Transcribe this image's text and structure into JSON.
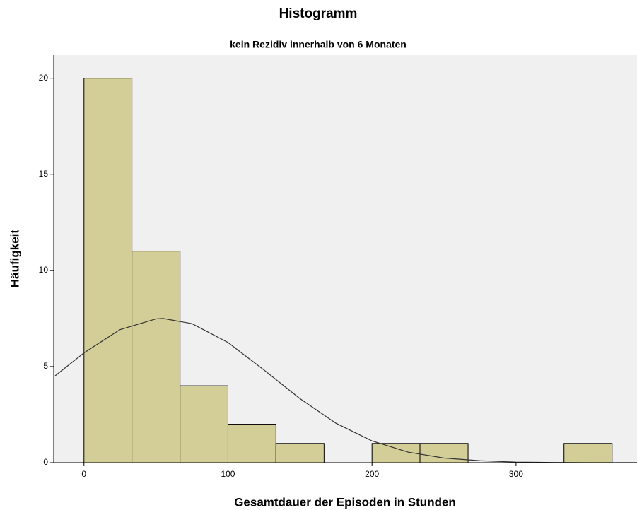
{
  "chart_data": {
    "type": "histogram",
    "title": "Histogramm",
    "subtitle": "kein Rezidiv innerhalb von 6 Monaten",
    "x_label": "Gesamtdauer der Episoden in Stunden",
    "y_label": "Häufigkeit",
    "bins": [
      0,
      33.3,
      66.7,
      100,
      133.3,
      166.7,
      200,
      233.3,
      266.7,
      300,
      333.3,
      366.7
    ],
    "values": [
      20,
      11,
      4,
      2,
      1,
      0,
      1,
      1,
      0,
      0,
      1
    ],
    "color": "#d3ce97",
    "curve": {
      "x": [
        -20,
        0,
        25,
        50,
        55,
        75,
        100,
        125,
        150,
        175,
        200,
        225,
        250,
        275,
        300,
        325,
        350,
        384
      ],
      "values": [
        4.52,
        5.71,
        6.92,
        7.48,
        7.5,
        7.23,
        6.25,
        4.82,
        3.33,
        2.05,
        1.13,
        0.55,
        0.24,
        0.1,
        0.03,
        0.01,
        0,
        0
      ]
    },
    "xlim": [
      -21,
      384
    ],
    "xticks": [
      0,
      100,
      200,
      300
    ],
    "ylim": [
      0,
      21.2
    ],
    "yticks": [
      0,
      5,
      10,
      15,
      20
    ]
  }
}
